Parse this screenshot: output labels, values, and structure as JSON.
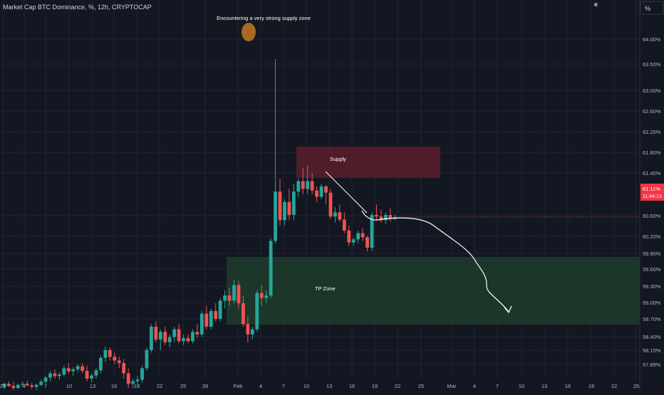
{
  "header": {
    "symbol_title": "Market Cap BTC Dominance, %, 12h, CRYPTOCAP",
    "scale_button": "%",
    "corner_glyph": "e"
  },
  "colors": {
    "background": "#131722",
    "grid": "#1f2433",
    "up": "#26a69a",
    "down": "#ef5350",
    "axis_text": "#b2b5be",
    "price_tag": "#f23645",
    "supply_zone": "#5b1f2b",
    "tp_zone": "#1e3b2b",
    "path": "#ffffff",
    "marker": "#a66a22"
  },
  "chart_data": {
    "type": "candlestick",
    "title": "Market Cap BTC Dominance, %, 12h, CRYPTOCAP",
    "y_unit": "%",
    "y_range": [
      57.8,
      64.6
    ],
    "y_ticks": [
      "64.00%",
      "63.50%",
      "63.00%",
      "62.60%",
      "62.20%",
      "61.80%",
      "61.40%",
      "60.60%",
      "60.20%",
      "59.90%",
      "59.60%",
      "59.30%",
      "59.00%",
      "58.70%",
      "58.40%",
      "58.15%",
      "57.89%"
    ],
    "x_ticks": [
      "25",
      "4",
      "7",
      "10",
      "13",
      "16",
      "19",
      "22",
      "25",
      "28",
      "Feb",
      "4",
      "7",
      "10",
      "13",
      "16",
      "19",
      "22",
      "25",
      "Mar",
      "4",
      "7",
      "10",
      "13",
      "16",
      "19",
      "22",
      "25"
    ],
    "ohlc": [
      [
        57.85,
        57.92,
        57.8,
        57.9
      ],
      [
        57.9,
        57.95,
        57.84,
        57.86
      ],
      [
        57.86,
        57.94,
        57.78,
        57.82
      ],
      [
        57.82,
        57.9,
        57.8,
        57.88
      ],
      [
        57.88,
        57.95,
        57.84,
        57.9
      ],
      [
        57.9,
        57.96,
        57.85,
        57.87
      ],
      [
        57.87,
        57.92,
        57.8,
        57.84
      ],
      [
        57.84,
        57.9,
        57.78,
        57.88
      ],
      [
        57.88,
        57.98,
        57.86,
        57.94
      ],
      [
        57.94,
        58.05,
        57.9,
        58.02
      ],
      [
        58.02,
        58.15,
        57.95,
        58.1
      ],
      [
        58.1,
        58.18,
        58.0,
        58.05
      ],
      [
        58.05,
        58.12,
        57.98,
        58.08
      ],
      [
        58.08,
        58.25,
        58.04,
        58.2
      ],
      [
        58.2,
        58.3,
        58.1,
        58.14
      ],
      [
        58.14,
        58.22,
        58.05,
        58.18
      ],
      [
        58.18,
        58.28,
        58.12,
        58.24
      ],
      [
        58.24,
        58.3,
        58.1,
        58.15
      ],
      [
        58.15,
        58.25,
        57.95,
        58.0
      ],
      [
        58.0,
        58.1,
        57.92,
        58.06
      ],
      [
        58.06,
        58.2,
        58.0,
        58.16
      ],
      [
        58.16,
        58.45,
        58.1,
        58.4
      ],
      [
        58.4,
        58.62,
        58.32,
        58.55
      ],
      [
        58.55,
        58.6,
        58.35,
        58.42
      ],
      [
        58.42,
        58.5,
        58.28,
        58.35
      ],
      [
        58.35,
        58.42,
        58.2,
        58.3
      ],
      [
        58.3,
        58.38,
        58.0,
        58.1
      ],
      [
        58.1,
        58.2,
        57.82,
        57.9
      ],
      [
        57.9,
        58.0,
        57.82,
        57.95
      ],
      [
        57.95,
        58.05,
        57.84,
        57.98
      ],
      [
        57.98,
        58.25,
        57.92,
        58.2
      ],
      [
        58.2,
        58.6,
        58.15,
        58.55
      ],
      [
        58.55,
        59.05,
        58.5,
        59.0
      ],
      [
        59.0,
        59.1,
        58.7,
        58.75
      ],
      [
        58.75,
        58.95,
        58.55,
        58.9
      ],
      [
        58.9,
        59.0,
        58.65,
        58.7
      ],
      [
        58.7,
        58.85,
        58.6,
        58.8
      ],
      [
        58.8,
        59.0,
        58.7,
        58.95
      ],
      [
        58.95,
        59.05,
        58.68,
        58.72
      ],
      [
        58.72,
        58.85,
        58.65,
        58.78
      ],
      [
        58.78,
        58.85,
        58.68,
        58.72
      ],
      [
        58.72,
        58.95,
        58.68,
        58.9
      ],
      [
        58.9,
        59.05,
        58.78,
        58.85
      ],
      [
        58.85,
        59.3,
        58.8,
        59.25
      ],
      [
        59.25,
        59.4,
        58.95,
        59.0
      ],
      [
        59.0,
        59.35,
        58.95,
        59.3
      ],
      [
        59.3,
        59.45,
        59.1,
        59.15
      ],
      [
        59.15,
        59.55,
        59.1,
        59.5
      ],
      [
        59.5,
        59.7,
        59.35,
        59.6
      ],
      [
        59.6,
        59.75,
        59.4,
        59.5
      ],
      [
        59.5,
        59.9,
        59.45,
        59.8
      ],
      [
        59.8,
        59.88,
        59.35,
        59.45
      ],
      [
        59.45,
        59.6,
        59.0,
        59.05
      ],
      [
        59.05,
        59.2,
        58.7,
        58.85
      ],
      [
        58.85,
        59.0,
        58.75,
        58.95
      ],
      [
        58.95,
        59.7,
        58.9,
        59.65
      ],
      [
        59.65,
        59.8,
        59.4,
        59.55
      ],
      [
        59.55,
        59.7,
        59.45,
        59.6
      ],
      [
        59.6,
        60.7,
        59.55,
        60.65
      ],
      [
        60.65,
        64.15,
        60.6,
        61.6
      ],
      [
        61.6,
        61.85,
        60.95,
        61.05
      ],
      [
        61.05,
        61.45,
        60.95,
        61.4
      ],
      [
        61.4,
        61.65,
        61.05,
        61.15
      ],
      [
        61.15,
        61.75,
        61.05,
        61.6
      ],
      [
        61.6,
        61.85,
        61.5,
        61.8
      ],
      [
        61.8,
        62.05,
        61.55,
        61.65
      ],
      [
        61.65,
        62.1,
        61.55,
        61.8
      ],
      [
        61.8,
        61.95,
        61.55,
        61.62
      ],
      [
        61.62,
        61.7,
        61.4,
        61.5
      ],
      [
        61.5,
        61.75,
        61.45,
        61.7
      ],
      [
        61.7,
        61.72,
        61.35,
        61.58
      ],
      [
        61.58,
        61.65,
        61.08,
        61.12
      ],
      [
        61.12,
        61.3,
        61.0,
        61.2
      ],
      [
        61.2,
        61.35,
        61.02,
        61.06
      ],
      [
        61.06,
        61.2,
        60.8,
        60.85
      ],
      [
        60.85,
        60.95,
        60.55,
        60.62
      ],
      [
        60.62,
        60.72,
        60.55,
        60.68
      ],
      [
        60.68,
        60.85,
        60.6,
        60.8
      ],
      [
        60.8,
        60.9,
        60.65,
        60.72
      ],
      [
        60.72,
        60.75,
        60.45,
        60.52
      ],
      [
        60.52,
        61.2,
        60.45,
        61.15
      ],
      [
        61.15,
        61.35,
        61.05,
        61.12
      ],
      [
        61.12,
        61.25,
        61.0,
        61.05
      ],
      [
        61.05,
        61.2,
        60.98,
        61.15
      ],
      [
        61.15,
        61.28,
        61.02,
        61.08
      ],
      [
        61.08,
        61.16,
        61.04,
        61.11
      ]
    ],
    "last_price": "61.11%",
    "countdown": "11:44:13",
    "annotations": {
      "marker_label": "Encountering a very strong supply zone",
      "supply_zone": {
        "label": "Supply",
        "range": [
          61.35,
          61.95
        ]
      },
      "tp_zone": {
        "label": "TP Zone",
        "range": [
          58.65,
          59.85
        ]
      },
      "projection": [
        [
          60.75,
          0
        ],
        [
          60.65,
          1
        ],
        [
          60.62,
          4
        ],
        [
          60.55,
          8
        ],
        [
          60.25,
          12
        ],
        [
          59.7,
          16
        ],
        [
          59.35,
          19
        ],
        [
          59.0,
          21
        ]
      ]
    }
  }
}
